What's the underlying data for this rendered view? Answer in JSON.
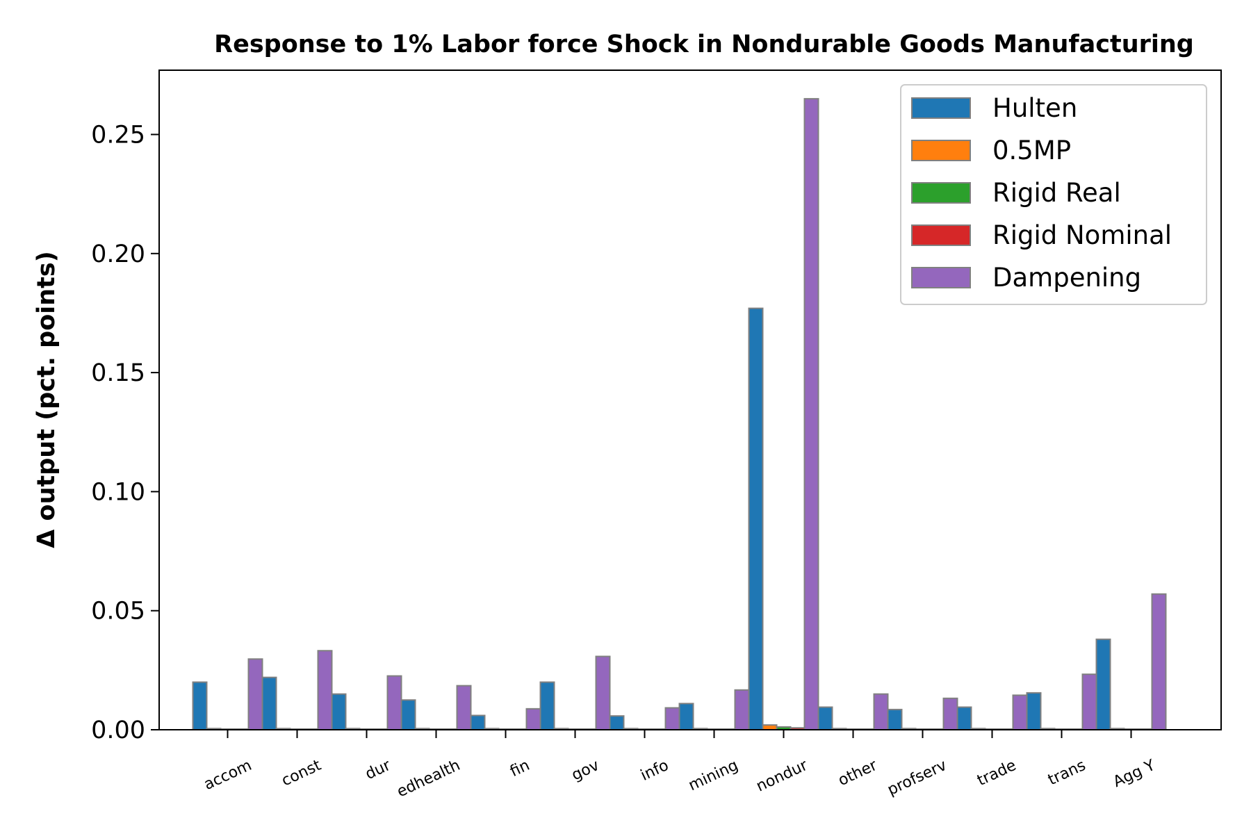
{
  "chart_data": {
    "type": "bar",
    "title": "Response to 1% Labor force Shock in Nondurable Goods Manufacturing",
    "xlabel": "",
    "ylabel": "Δ output (pct. points)",
    "ylim": [
      0,
      0.277
    ],
    "yticks": [
      "0.00",
      "0.05",
      "0.10",
      "0.15",
      "0.20",
      "0.25"
    ],
    "ytick_values": [
      0,
      0.05,
      0.1,
      0.15,
      0.2,
      0.25
    ],
    "categories": [
      "accom",
      "const",
      "dur",
      "edhealth",
      "fin",
      "gov",
      "info",
      "mining",
      "nondur",
      "other",
      "profserv",
      "trade",
      "trans",
      "Agg Y"
    ],
    "legend_position": "top-right",
    "grid": false,
    "bar_edge_color": "#808080",
    "series": [
      {
        "name": "Hulten",
        "color": "#1f77b4",
        "values": [
          0.02,
          0.022,
          0.015,
          0.0125,
          0.006,
          0.02,
          0.0058,
          0.011,
          0.177,
          0.0095,
          0.0085,
          0.0095,
          0.0155,
          0.038
        ]
      },
      {
        "name": "0.5MP",
        "color": "#ff7f0e",
        "values": [
          0.0005,
          0.0005,
          0.0005,
          0.0005,
          0.0005,
          0.0005,
          0.0005,
          0.0005,
          0.002,
          0.0005,
          0.0005,
          0.0005,
          0.0005,
          0.0005
        ]
      },
      {
        "name": "Rigid Real",
        "color": "#2ca02c",
        "values": [
          0.0003,
          0.0003,
          0.0003,
          0.0003,
          0.0003,
          0.0003,
          0.0003,
          0.0003,
          0.0012,
          0.0003,
          0.0003,
          0.0003,
          0.0003,
          0.0003
        ]
      },
      {
        "name": "Rigid Nominal",
        "color": "#d62728",
        "values": [
          0.0003,
          0.0003,
          0.0003,
          0.0003,
          0.0003,
          0.0003,
          0.0003,
          0.0003,
          0.0008,
          0.0003,
          0.0003,
          0.0003,
          0.0003,
          0.0003
        ]
      },
      {
        "name": "Dampening",
        "color": "#9467bd",
        "values": [
          0.0297,
          0.0332,
          0.0226,
          0.0185,
          0.0088,
          0.0308,
          0.0092,
          0.0167,
          0.265,
          0.015,
          0.0132,
          0.0145,
          0.0233,
          0.057
        ]
      }
    ]
  }
}
